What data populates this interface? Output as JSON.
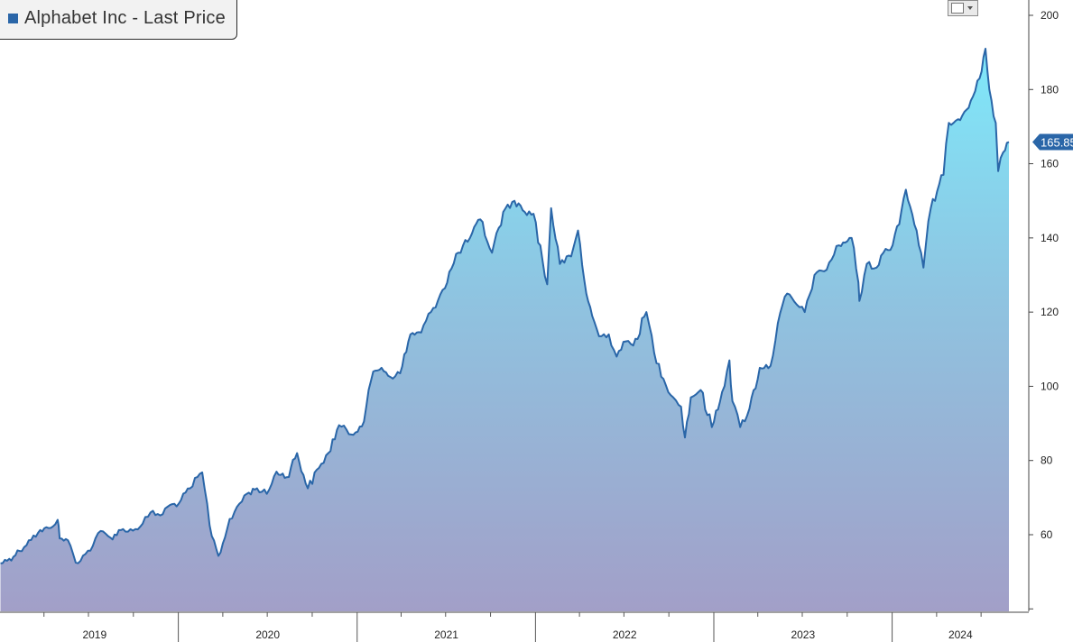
{
  "chart_data": {
    "type": "area",
    "title": "",
    "xlabel": "",
    "ylabel": "",
    "ylim": [
      40,
      205
    ],
    "xlim": [
      "2019-01-01",
      "2024-07-12"
    ],
    "yticks": [
      60,
      80,
      100,
      120,
      140,
      160,
      180,
      200
    ],
    "x_tick_labels": [
      "2019",
      "2020",
      "2021",
      "2022",
      "2023",
      "2024"
    ],
    "last_value_label": "165.85",
    "legend": {
      "position": "top-left",
      "entries": [
        "Alphabet Inc - Last Price"
      ]
    },
    "grid": false,
    "series": [
      {
        "name": "Alphabet Inc - Last Price",
        "x": [
          "2019-01-02",
          "2019-01-20",
          "2019-02-10",
          "2019-03-01",
          "2019-03-20",
          "2019-04-10",
          "2019-04-29",
          "2019-05-03",
          "2019-05-20",
          "2019-06-05",
          "2019-06-25",
          "2019-07-10",
          "2019-07-26",
          "2019-08-15",
          "2019-09-10",
          "2019-09-30",
          "2019-10-20",
          "2019-11-05",
          "2019-11-25",
          "2019-12-15",
          "2020-01-02",
          "2020-01-25",
          "2020-02-19",
          "2020-03-05",
          "2020-03-23",
          "2020-04-10",
          "2020-04-30",
          "2020-05-20",
          "2020-06-10",
          "2020-06-30",
          "2020-07-20",
          "2020-08-10",
          "2020-08-31",
          "2020-09-22",
          "2020-10-15",
          "2020-11-03",
          "2020-11-25",
          "2020-12-20",
          "2021-01-15",
          "2021-02-03",
          "2021-02-20",
          "2021-03-10",
          "2021-03-30",
          "2021-04-20",
          "2021-05-12",
          "2021-06-01",
          "2021-06-25",
          "2021-07-27",
          "2021-08-20",
          "2021-09-10",
          "2021-10-04",
          "2021-10-27",
          "2021-11-19",
          "2021-12-10",
          "2021-12-28",
          "2022-01-25",
          "2022-02-02",
          "2022-02-20",
          "2022-03-15",
          "2022-03-29",
          "2022-04-15",
          "2022-04-27",
          "2022-05-11",
          "2022-05-31",
          "2022-06-16",
          "2022-06-30",
          "2022-07-20",
          "2022-08-16",
          "2022-09-01",
          "2022-09-20",
          "2022-10-10",
          "2022-10-26",
          "2022-11-03",
          "2022-11-15",
          "2022-12-05",
          "2022-12-28",
          "2023-01-18",
          "2023-02-02",
          "2023-02-08",
          "2023-02-24",
          "2023-03-15",
          "2023-04-05",
          "2023-04-27",
          "2023-05-12",
          "2023-05-31",
          "2023-06-20",
          "2023-07-06",
          "2023-07-26",
          "2023-08-15",
          "2023-09-14",
          "2023-10-10",
          "2023-10-24",
          "2023-10-26",
          "2023-11-10",
          "2023-11-30",
          "2023-12-14",
          "2024-01-02",
          "2024-01-29",
          "2024-02-20",
          "2024-03-05",
          "2024-03-20",
          "2024-04-15",
          "2024-04-26",
          "2024-05-15",
          "2024-06-10",
          "2024-06-28",
          "2024-07-10",
          "2024-07-18",
          "2024-07-31",
          "2024-08-05",
          "2024-08-15",
          "2024-08-27"
        ],
        "values": [
          52.3,
          53.5,
          55.6,
          58.5,
          60.5,
          61.8,
          64.0,
          59.0,
          58.5,
          52.5,
          54.8,
          57.0,
          61.0,
          59.2,
          61.5,
          61.1,
          63.0,
          66.0,
          65.2,
          68.0,
          68.4,
          72.5,
          76.8,
          62.5,
          54.3,
          61.6,
          67.5,
          71.0,
          72.5,
          71.0,
          77.0,
          75.5,
          82.0,
          72.5,
          78.0,
          82.0,
          89.5,
          87.0,
          90.5,
          104.0,
          105.0,
          102.5,
          103.5,
          114.0,
          114.5,
          120.0,
          126.0,
          136.0,
          140.0,
          145.0,
          136.0,
          147.0,
          150.0,
          147.0,
          146.5,
          127.5,
          148.0,
          133.0,
          135.0,
          142.0,
          125.0,
          119.0,
          113.5,
          114.0,
          108.0,
          112.0,
          111.0,
          120.0,
          109.0,
          102.0,
          97.0,
          94.5,
          86.2,
          97.0,
          99.0,
          89.0,
          98.5,
          107.0,
          96.0,
          89.0,
          94.0,
          105.0,
          105.5,
          117.0,
          125.0,
          122.0,
          120.0,
          130.0,
          131.0,
          138.0,
          140.0,
          128.0,
          123.0,
          133.0,
          132.0,
          136.0,
          138.0,
          153.0,
          142.0,
          132.0,
          148.0,
          157.0,
          171.0,
          172.0,
          177.0,
          183.0,
          191.0,
          180.0,
          171.0,
          158.0,
          163.0,
          165.85
        ]
      }
    ]
  }
}
